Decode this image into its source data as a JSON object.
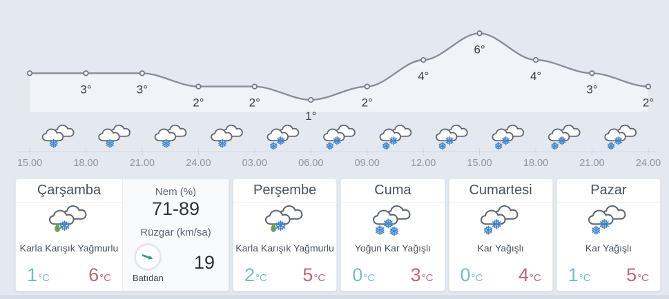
{
  "chart_data": {
    "type": "line",
    "title": "",
    "x": [
      "15.00",
      "18.00",
      "21.00",
      "24.00",
      "03.00",
      "06.00",
      "09.00",
      "12.00",
      "15.00",
      "18.00",
      "21.00",
      "24.00"
    ],
    "values": [
      3,
      3,
      3,
      2,
      2,
      1,
      2,
      4,
      6,
      4,
      3,
      2
    ],
    "point_labels": [
      "",
      "3°",
      "3°",
      "2°",
      "2°",
      "1°",
      "2°",
      "4°",
      "6°",
      "4°",
      "3°",
      "2°"
    ],
    "unit": "°C",
    "ylim": [
      0,
      8
    ],
    "grid": false,
    "icons": [
      "snow-light",
      "snow-light",
      "snow-light",
      "snow-light",
      "snow",
      "snow",
      "snow",
      "snow",
      "snow",
      "snow",
      "snow"
    ],
    "colors": {
      "line": "#868f99",
      "marker_stroke": "#6e7781",
      "marker_fill": "#eef2f6",
      "area_fill": "rgba(255,255,255,0.48)",
      "axis": "#ccd3da",
      "tick_label": "#8c959e",
      "temp_label": "#3a4149",
      "background": "#e3e9ef",
      "snowflake": "#4487cd",
      "cloud_outline": "#5d6671"
    }
  },
  "temp_unit": "°C",
  "cards": [
    {
      "name": "Çarşamba",
      "condition": "Karla Karışık Yağmurlu",
      "icon": "sleet",
      "min": "1",
      "max": "6"
    },
    {
      "name": "Perşembe",
      "condition": "Karla Karışık Yağmurlu",
      "icon": "sleet",
      "min": "2",
      "max": "5"
    },
    {
      "name": "Cuma",
      "condition": "Yoğun Kar Yağışlı",
      "icon": "snow-heavy",
      "min": "0",
      "max": "3"
    },
    {
      "name": "Cumartesi",
      "condition": "Kar Yağışlı",
      "icon": "snow",
      "min": "0",
      "max": "4"
    },
    {
      "name": "Pazar",
      "condition": "Kar Yağışlı",
      "icon": "snow",
      "min": "1",
      "max": "5"
    }
  ],
  "details": {
    "humidity_label": "Nem (%)",
    "humidity_value": "71-89",
    "wind_label": "Rüzgar (km/sa)",
    "wind_direction": "Batıdan",
    "wind_speed": "19",
    "wind_icon": "wind-direction-arrow",
    "wind_arrow_color": "#2aa38e"
  },
  "colors": {
    "min_temp": "#74bfc4",
    "max_temp": "#c4656d",
    "rain_drop": "#67a350"
  }
}
